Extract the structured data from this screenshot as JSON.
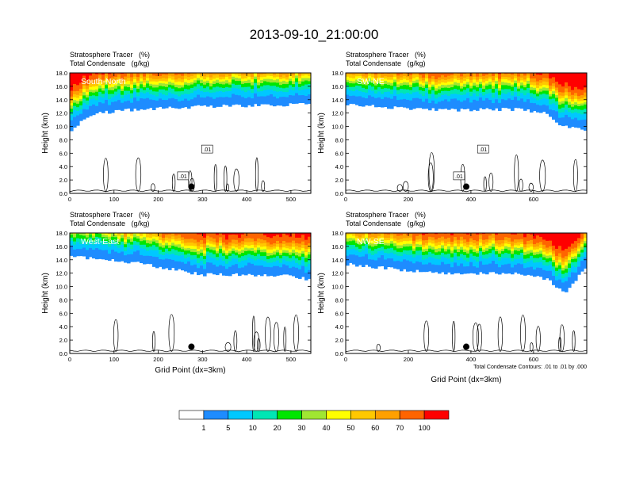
{
  "figure_title": "2013-09-10_21:00:00",
  "colors": {
    "levels": [
      "#ffffff",
      "#1e8cff",
      "#00c8ff",
      "#00e6b4",
      "#00e600",
      "#a0e632",
      "#ffff00",
      "#ffc800",
      "#ffa000",
      "#ff6400",
      "#ff0000"
    ],
    "contour": "#000000",
    "background": "#ffffff"
  },
  "chart_data": [
    {
      "type": "heatmap",
      "panel": "South-North",
      "title_lines": [
        "Stratosphere Tracer   (%)",
        "Total Condensate   (g/kg)"
      ],
      "ylabel": "Height (km)",
      "xlabel": "",
      "xlim": [
        0,
        545
      ],
      "ylim": [
        0,
        18
      ],
      "xticks": [
        0,
        100,
        200,
        300,
        400,
        500
      ],
      "yticks": [
        "0.0",
        "2.0",
        "4.0",
        "6.0",
        "8.0",
        "10.0",
        "12.0",
        "14.0",
        "16.0",
        "18.0"
      ],
      "contour_labels": [
        ".01",
        ".01"
      ],
      "marker_x": 275,
      "marker_height_km": 1.0,
      "tropopause_profile_km": [
        [
          0,
          9.0
        ],
        [
          20,
          10.5
        ],
        [
          60,
          12.0
        ],
        [
          150,
          12.6
        ],
        [
          300,
          13.0
        ],
        [
          450,
          13.2
        ],
        [
          545,
          13.4
        ]
      ]
    },
    {
      "type": "heatmap",
      "panel": "SW-NE",
      "title_lines": [
        "Stratosphere Tracer   (%)",
        "Total Condensate   (g/kg)"
      ],
      "ylabel": "Height (km)",
      "xlabel": "",
      "xlim": [
        0,
        770
      ],
      "ylim": [
        0,
        18
      ],
      "xticks": [
        0,
        200,
        400,
        600
      ],
      "yticks": [
        "0.0",
        "2.0",
        "4.0",
        "6.0",
        "8.0",
        "10.0",
        "12.0",
        "14.0",
        "16.0",
        "18.0"
      ],
      "contour_labels": [
        ".01",
        ".01"
      ],
      "marker_x": 385,
      "marker_height_km": 1.0,
      "tropopause_profile_km": [
        [
          0,
          13.4
        ],
        [
          100,
          13.0
        ],
        [
          300,
          12.5
        ],
        [
          550,
          12.6
        ],
        [
          640,
          12.0
        ],
        [
          680,
          10.4
        ],
        [
          770,
          9.3
        ]
      ]
    },
    {
      "type": "heatmap",
      "panel": "West-East",
      "title_lines": [
        "Stratosphere Tracer   (%)",
        "Total Condensate   (g/kg)"
      ],
      "ylabel": "Height (km)",
      "xlabel": "Grid Point (dx=3km)",
      "xlim": [
        0,
        545
      ],
      "ylim": [
        0,
        18
      ],
      "xticks": [
        0,
        100,
        200,
        300,
        400,
        500
      ],
      "yticks": [
        "0.0",
        "2.0",
        "4.0",
        "6.0",
        "8.0",
        "10.0",
        "12.0",
        "14.0",
        "16.0",
        "18.0"
      ],
      "contour_labels": [],
      "marker_x": 275,
      "marker_height_km": 1.0,
      "tropopause_profile_km": [
        [
          0,
          14.6
        ],
        [
          150,
          13.6
        ],
        [
          300,
          11.8
        ],
        [
          400,
          11.8
        ],
        [
          500,
          11.6
        ],
        [
          545,
          11.0
        ]
      ]
    },
    {
      "type": "heatmap",
      "panel": "NW-SE",
      "title_lines": [
        "Stratosphere Tracer   (%)",
        "Total Condensate   (g/kg)"
      ],
      "ylabel": "Height (km)",
      "xlabel": "Grid Point (dx=3km)",
      "xlim": [
        0,
        770
      ],
      "ylim": [
        0,
        18
      ],
      "xticks": [
        0,
        200,
        400,
        600
      ],
      "yticks": [
        "0.0",
        "2.0",
        "4.0",
        "6.0",
        "8.0",
        "10.0",
        "12.0",
        "14.0",
        "16.0",
        "18.0"
      ],
      "contour_labels": [],
      "contour_info": "Total Condensate Contours: .01 to .01 by .000",
      "marker_x": 385,
      "marker_height_km": 1.0,
      "tropopause_profile_km": [
        [
          0,
          13.4
        ],
        [
          300,
          12.0
        ],
        [
          550,
          12.0
        ],
        [
          650,
          11.0
        ],
        [
          700,
          9.0
        ],
        [
          770,
          13.0
        ]
      ]
    }
  ],
  "colorbar": {
    "labels": [
      "1",
      "5",
      "10",
      "20",
      "30",
      "40",
      "50",
      "60",
      "70",
      "100"
    ]
  }
}
